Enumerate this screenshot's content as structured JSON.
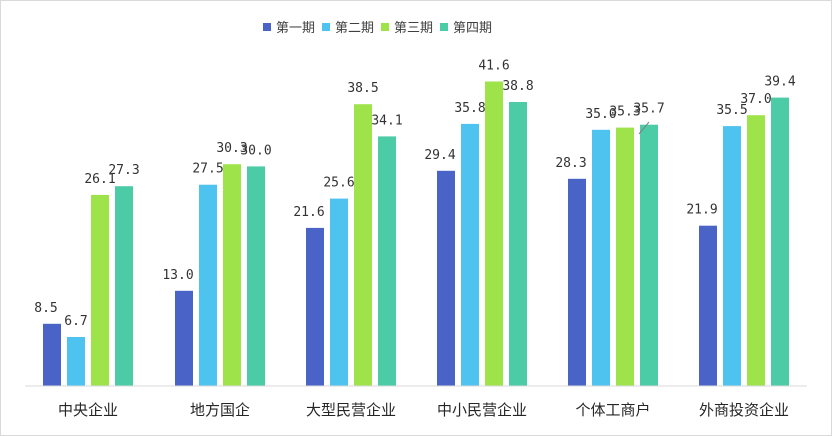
{
  "chart_data": {
    "type": "bar",
    "categories": [
      "中央企业",
      "地方国企",
      "大型民营企业",
      "中小民营企业",
      "个体工商户",
      "外商投资企业"
    ],
    "series": [
      {
        "name": "第一期",
        "color": "#4a63c7",
        "values": [
          8.5,
          13.0,
          21.6,
          29.4,
          28.3,
          21.9
        ],
        "labels": [
          "8.5",
          "13.0",
          "21.6",
          "29.4",
          "28.3",
          "21.9"
        ]
      },
      {
        "name": "第二期",
        "color": "#4fc3ef",
        "values": [
          6.7,
          27.5,
          25.6,
          35.8,
          35.0,
          35.5
        ],
        "labels": [
          "6.7",
          "27.5",
          "25.6",
          "35.8",
          "35.0",
          "35.5"
        ]
      },
      {
        "name": "第三期",
        "color": "#9ee34a",
        "values": [
          26.1,
          30.3,
          38.5,
          41.6,
          35.3,
          37.0
        ],
        "labels": [
          "26.1",
          "30.3",
          "38.5",
          "41.6",
          "35.3",
          "37.0"
        ]
      },
      {
        "name": "第四期",
        "color": "#4ccba7",
        "values": [
          27.3,
          30.0,
          34.1,
          38.8,
          35.7,
          39.4
        ],
        "labels": [
          "27.3",
          "30.0",
          "34.1",
          "38.8",
          "35.7",
          "39.4"
        ]
      }
    ],
    "ylim": [
      0,
      45
    ],
    "legend_position": "top-center",
    "grid": false,
    "title": "",
    "xlabel": "",
    "ylabel": ""
  }
}
